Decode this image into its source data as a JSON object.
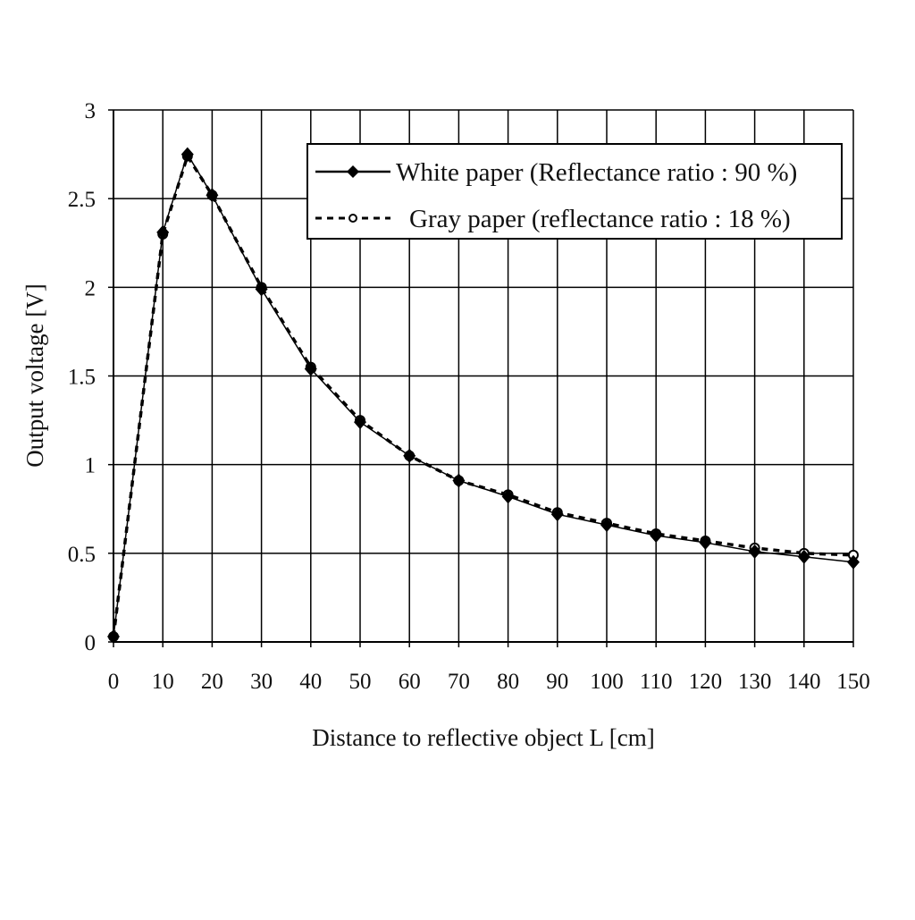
{
  "chart_data": {
    "type": "line",
    "title": "",
    "xlabel": "Distance to reflective object L [cm]",
    "ylabel": "Output voltage [V]",
    "xlim": [
      0,
      150
    ],
    "ylim": [
      0,
      3
    ],
    "grid": true,
    "x_ticks": [
      0,
      10,
      20,
      30,
      40,
      50,
      60,
      70,
      80,
      90,
      100,
      110,
      120,
      130,
      140,
      150
    ],
    "y_ticks": [
      0,
      0.5,
      1,
      1.5,
      2,
      2.5,
      3
    ],
    "y_tick_labels": [
      "0",
      "0.5",
      "1",
      "1.5",
      "2",
      "2.5",
      "3"
    ],
    "legend_position": "top-right",
    "series": [
      {
        "name": "White paper (Reflectance ratio : 90 %)",
        "style": "solid",
        "marker": "filled-diamond",
        "color": "#000000",
        "x": [
          0,
          10,
          15,
          20,
          30,
          40,
          50,
          60,
          70,
          80,
          90,
          100,
          110,
          120,
          130,
          140,
          150
        ],
        "y": [
          0.03,
          2.31,
          2.75,
          2.52,
          1.99,
          1.54,
          1.24,
          1.05,
          0.91,
          0.82,
          0.72,
          0.66,
          0.6,
          0.56,
          0.51,
          0.48,
          0.45
        ]
      },
      {
        "name": "Gray paper (reflectance ratio : 18 %)",
        "style": "dashed",
        "marker": "open-circle",
        "color": "#000000",
        "x": [
          0,
          10,
          15,
          20,
          30,
          40,
          50,
          60,
          70,
          80,
          90,
          100,
          110,
          120,
          130,
          140,
          150
        ],
        "y": [
          0.03,
          2.3,
          2.74,
          2.52,
          2.0,
          1.55,
          1.25,
          1.05,
          0.91,
          0.83,
          0.73,
          0.67,
          0.61,
          0.57,
          0.53,
          0.5,
          0.49
        ]
      }
    ]
  }
}
